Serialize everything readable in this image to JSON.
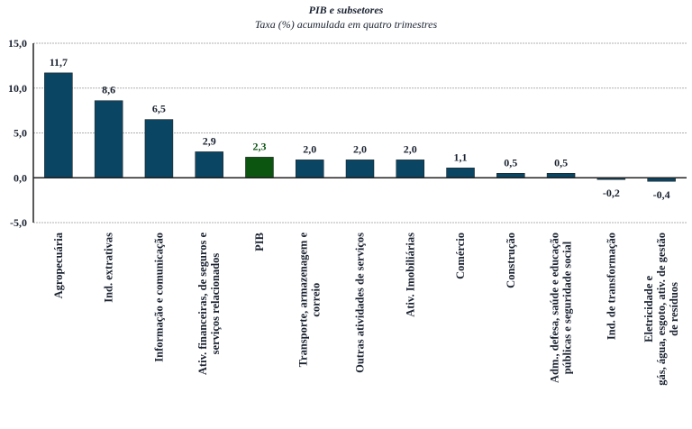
{
  "chart_data": {
    "type": "bar",
    "title": "PIB e subsetores",
    "subtitle": "Taxa (%) acumulada em quatro trimestres",
    "xlabel": "",
    "ylabel": "",
    "ylim": [
      -5,
      15
    ],
    "yticks": [
      "15,0",
      "10,0",
      "5,0",
      "0,0",
      "-5,0"
    ],
    "ytick_values": [
      15,
      10,
      5,
      0,
      -5
    ],
    "grid": true,
    "categories": [
      [
        "Agropecuária"
      ],
      [
        "Ind. extrativas"
      ],
      [
        "Informação e comunicação"
      ],
      [
        "Ativ. financeiras, de seguros e",
        "serviços relacionados"
      ],
      [
        "PIB"
      ],
      [
        "Transporte, armazenagem e",
        "correio"
      ],
      [
        "Outras atividades de serviços"
      ],
      [
        "Ativ. Imobiliárias"
      ],
      [
        "Comércio"
      ],
      [
        "Construção"
      ],
      [
        "Adm., defesa, saúde e educação",
        "públicas e seguridade social"
      ],
      [
        "Ind. de transformação"
      ],
      [
        "Eletricidade e",
        "gás, água, esgoto, ativ. de gestão",
        "de resíduos"
      ]
    ],
    "values": [
      11.7,
      8.6,
      6.5,
      2.9,
      2.3,
      2.0,
      2.0,
      2.0,
      1.1,
      0.5,
      0.5,
      -0.2,
      -0.4
    ],
    "data_labels": [
      "11,7",
      "8,6",
      "6,5",
      "2,9",
      "2,3",
      "2,0",
      "2,0",
      "2,0",
      "1,1",
      "0,5",
      "0,5",
      "-0,2",
      "-0,4"
    ],
    "highlight_index": 4,
    "colors": {
      "bar": "#0a4563",
      "highlight": "#0b5510",
      "label": "#1a2230",
      "highlight_label": "#0b5510",
      "grid": "#b0b0b0",
      "axis": "#222222"
    }
  }
}
